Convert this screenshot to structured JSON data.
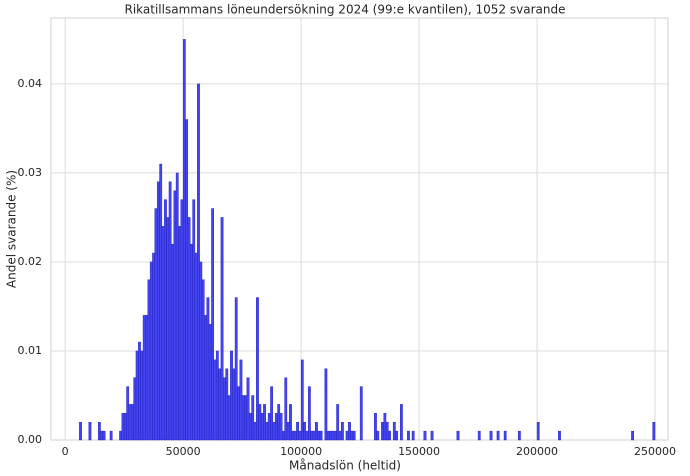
{
  "chart_data": {
    "type": "histogram",
    "title": "Rikatillsammans löneundersökning 2024 (99:e kvantilen), 1052 svarande",
    "xlabel": "Månadslön (heltid)",
    "ylabel": "Andel svarande (%)",
    "color": "#3a3af0",
    "edgecolor": "#1f1fb8",
    "grid": true,
    "xlim": [
      -6000,
      255500
    ],
    "ylim": [
      0,
      0.0474
    ],
    "xticks": [
      0,
      50000,
      100000,
      150000,
      200000,
      250000
    ],
    "yticks": [
      {
        "value": 0,
        "label": "0.00"
      },
      0.01,
      0.02,
      0.03,
      0.04
    ],
    "bins": [
      5000,
      6000,
      7000,
      8000,
      9000,
      10000,
      11000,
      12000,
      13000,
      14000,
      15000,
      16000,
      17000,
      18000,
      19000,
      20000,
      21000,
      22000,
      23000,
      24000,
      25000,
      26000,
      27000,
      28000,
      29000,
      30000,
      31000,
      32000,
      33000,
      34000,
      35000,
      36000,
      37000,
      38000,
      39000,
      40000,
      41000,
      42000,
      43000,
      44000,
      45000,
      46000,
      47000,
      48000,
      49000,
      50000,
      51000,
      52000,
      53000,
      54000,
      55000,
      56000,
      57000,
      58000,
      59000,
      60000,
      61000,
      62000,
      63000,
      64000,
      65000,
      66000,
      67000,
      68000,
      69000,
      70000,
      71000,
      72000,
      73000,
      74000,
      75000,
      76000,
      77000,
      78000,
      79000,
      80000,
      81000,
      82000,
      83000,
      84000,
      85000,
      86000,
      87000,
      88000,
      89000,
      90000,
      91000,
      92000,
      93000,
      94000,
      95000,
      96000,
      97000,
      98000,
      99000,
      100000,
      101000,
      102000,
      103000,
      104000,
      105000,
      106000,
      107000,
      108000,
      109000,
      110000,
      111000,
      112000,
      113000,
      114000,
      115000,
      116000,
      117000,
      118000,
      119000,
      120000,
      121000,
      122000,
      123000,
      124000,
      125000,
      126000,
      127000,
      128000,
      129000,
      130000,
      131000,
      132000,
      133000,
      134000,
      135000,
      136000,
      137000,
      138000,
      139000,
      140000,
      141000,
      142000,
      143000,
      144000,
      145000,
      146000,
      147000,
      148000,
      149000,
      150000,
      151000,
      152000,
      153000,
      154000,
      155000,
      156000,
      157000,
      158000,
      159000,
      160000,
      161000,
      162000,
      163000,
      164000,
      165000,
      166000,
      167000,
      168000,
      169000,
      170000,
      171000,
      172000,
      173000,
      174000,
      175000,
      176000,
      177000,
      178000,
      179000,
      180000,
      181000,
      182000,
      183000,
      184000,
      185000,
      186000,
      187000,
      188000,
      189000,
      190000,
      191000,
      192000,
      193000,
      194000,
      195000,
      196000,
      197000,
      198000,
      199000,
      200000,
      201000,
      202000,
      203000,
      204000,
      205000,
      206000,
      207000,
      208000,
      209000,
      210000,
      211000,
      212000,
      213000,
      214000,
      215000,
      216000,
      217000,
      218000,
      219000,
      220000,
      221000,
      222000,
      223000,
      224000,
      225000,
      226000,
      227000,
      228000,
      229000,
      230000,
      231000,
      232000,
      233000,
      234000,
      235000,
      236000,
      237000,
      238000,
      239000,
      240000,
      241000,
      242000,
      243000,
      244000,
      245000,
      246000,
      247000,
      248000,
      249000,
      250000
    ],
    "values": [
      0,
      0.002,
      0,
      0,
      0,
      0.002,
      0,
      0,
      0,
      0.002,
      0.001,
      0.001,
      0,
      0,
      0.001,
      0,
      0,
      0,
      0.001,
      0.003,
      0.003,
      0.006,
      0.004,
      0.004,
      0.007,
      0.01,
      0.011,
      0.01,
      0.014,
      0.014,
      0.018,
      0.02,
      0.021,
      0.026,
      0.029,
      0.031,
      0.024,
      0.027,
      0.025,
      0.029,
      0.022,
      0.028,
      0.03,
      0.024,
      0.027,
      0.045,
      0.036,
      0.025,
      0.022,
      0.027,
      0.021,
      0.04,
      0.02,
      0.018,
      0.014,
      0.016,
      0.013,
      0.026,
      0.009,
      0.01,
      0.008,
      0.025,
      0.007,
      0.008,
      0.005,
      0.01,
      0.008,
      0.016,
      0.006,
      0.009,
      0.005,
      0.005,
      0.007,
      0.003,
      0.005,
      0.002,
      0.016,
      0.004,
      0.003,
      0.004,
      0.002,
      0.003,
      0.006,
      0.002,
      0.003,
      0.004,
      0.003,
      0.001,
      0.007,
      0.002,
      0.004,
      0.001,
      0.001,
      0.002,
      0.001,
      0.009,
      0.002,
      0.001,
      0.006,
      0.001,
      0.001,
      0.002,
      0.001,
      0.001,
      0,
      0.008,
      0.001,
      0.001,
      0.001,
      0.001,
      0.004,
      0.001,
      0.002,
      0,
      0.001,
      0.002,
      0.001,
      0.001,
      0,
      0,
      0.006,
      0,
      0,
      0,
      0,
      0,
      0.003,
      0.001,
      0,
      0.002,
      0.003,
      0.002,
      0.001,
      0,
      0.002,
      0.001,
      0,
      0.004,
      0,
      0,
      0.001,
      0,
      0.001,
      0,
      0,
      0,
      0,
      0.001,
      0,
      0,
      0.001,
      0,
      0,
      0,
      0,
      0,
      0,
      0,
      0,
      0,
      0,
      0.001,
      0,
      0,
      0,
      0,
      0,
      0,
      0,
      0,
      0.001,
      0,
      0,
      0,
      0,
      0.001,
      0,
      0,
      0.001,
      0,
      0,
      0.001,
      0,
      0,
      0,
      0,
      0,
      0.001,
      0,
      0,
      0,
      0,
      0,
      0,
      0,
      0.002,
      0,
      0,
      0,
      0,
      0,
      0,
      0,
      0,
      0.001,
      0,
      0,
      0,
      0,
      0,
      0,
      0,
      0,
      0,
      0,
      0,
      0,
      0,
      0,
      0,
      0,
      0,
      0,
      0,
      0,
      0,
      0,
      0,
      0,
      0,
      0,
      0,
      0,
      0,
      0,
      0.001,
      0,
      0,
      0,
      0,
      0,
      0,
      0,
      0,
      0.002
    ]
  }
}
